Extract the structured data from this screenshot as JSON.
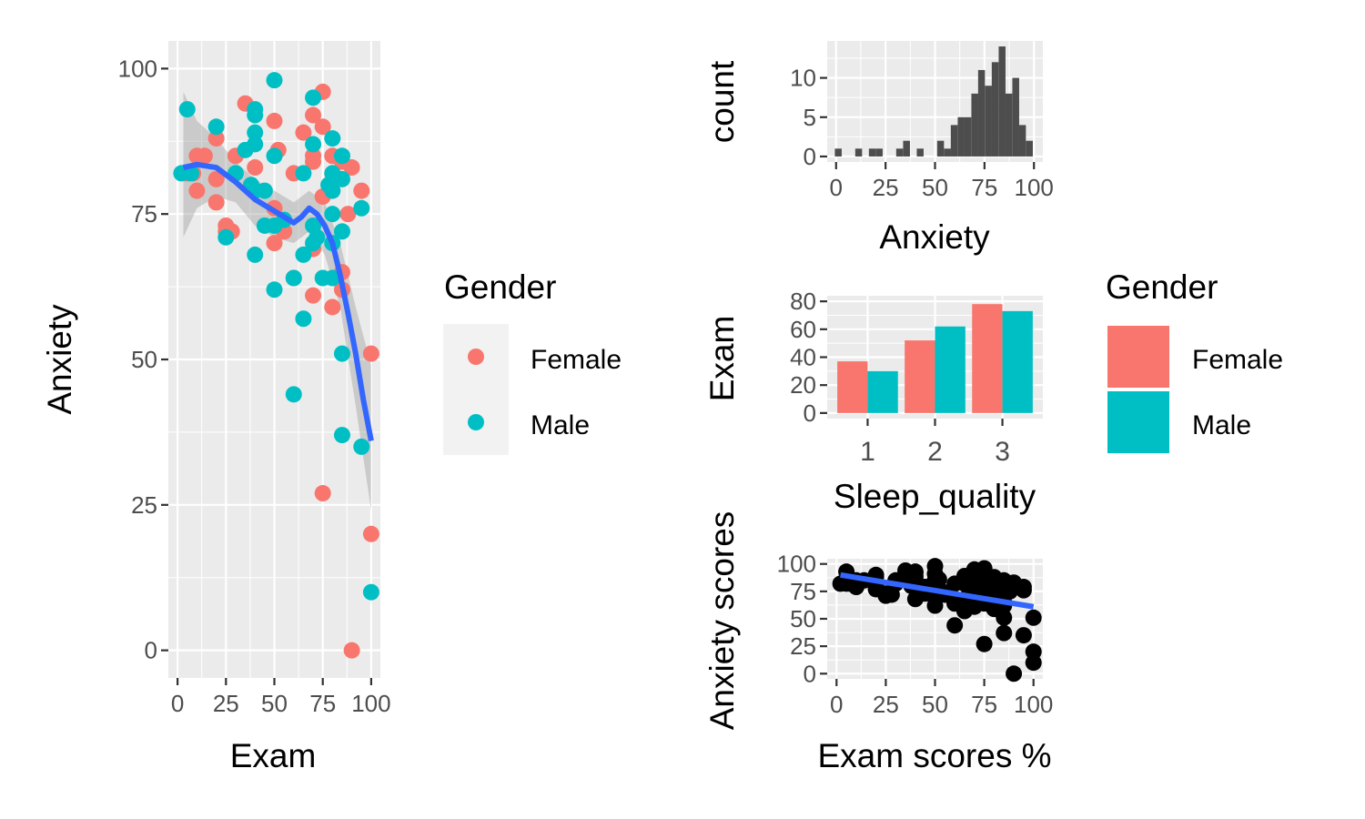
{
  "colors": {
    "female": "#F8766D",
    "male": "#00BFC4",
    "smooth": "#3366FF",
    "ribbon": "#999999",
    "hist": "#4d4d4d",
    "black": "#000000"
  },
  "legend_points": {
    "title": "Gender",
    "entries": [
      "Female",
      "Male"
    ]
  },
  "legend_bars": {
    "title": "Gender",
    "entries": [
      "Female",
      "Male"
    ]
  },
  "chart_data": [
    {
      "type": "scatter",
      "xlabel": "Exam",
      "ylabel": "Anxiety",
      "xlim": [
        0,
        100
      ],
      "ylim": [
        0,
        100
      ],
      "x_ticks": [
        "0",
        "25",
        "50",
        "75",
        "100"
      ],
      "y_ticks": [
        "0",
        "25",
        "50",
        "75",
        "100"
      ],
      "grid": true,
      "legend_position": "right",
      "series": [
        {
          "name": "Female",
          "points": [
            [
              5,
              82
            ],
            [
              8,
              82
            ],
            [
              10,
              85
            ],
            [
              10,
              79
            ],
            [
              14,
              85
            ],
            [
              20,
              88
            ],
            [
              20,
              81
            ],
            [
              20,
              77
            ],
            [
              25,
              73
            ],
            [
              25,
              72
            ],
            [
              28,
              72
            ],
            [
              30,
              85
            ],
            [
              35,
              94
            ],
            [
              40,
              83
            ],
            [
              50,
              91
            ],
            [
              50,
              76
            ],
            [
              50,
              70
            ],
            [
              52,
              86
            ],
            [
              55,
              72
            ],
            [
              60,
              64
            ],
            [
              60,
              82
            ],
            [
              65,
              89
            ],
            [
              70,
              92
            ],
            [
              70,
              85
            ],
            [
              70,
              84
            ],
            [
              70,
              69
            ],
            [
              70,
              61
            ],
            [
              75,
              96
            ],
            [
              75,
              90
            ],
            [
              75,
              78
            ],
            [
              75,
              27
            ],
            [
              80,
              85
            ],
            [
              80,
              82
            ],
            [
              80,
              59
            ],
            [
              85,
              84
            ],
            [
              85,
              65
            ],
            [
              85,
              62
            ],
            [
              88,
              75
            ],
            [
              90,
              83
            ],
            [
              90,
              0
            ],
            [
              95,
              79
            ],
            [
              100,
              51
            ],
            [
              100,
              20
            ]
          ]
        },
        {
          "name": "Male",
          "points": [
            [
              2,
              82
            ],
            [
              5,
              93
            ],
            [
              7,
              82
            ],
            [
              20,
              90
            ],
            [
              25,
              71
            ],
            [
              30,
              82
            ],
            [
              35,
              86
            ],
            [
              38,
              80
            ],
            [
              40,
              93
            ],
            [
              40,
              92
            ],
            [
              40,
              89
            ],
            [
              40,
              87
            ],
            [
              40,
              79
            ],
            [
              40,
              68
            ],
            [
              45,
              79
            ],
            [
              45,
              73
            ],
            [
              50,
              98
            ],
            [
              50,
              85
            ],
            [
              50,
              73
            ],
            [
              50,
              62
            ],
            [
              55,
              74
            ],
            [
              60,
              64
            ],
            [
              60,
              44
            ],
            [
              65,
              82
            ],
            [
              65,
              68
            ],
            [
              65,
              57
            ],
            [
              70,
              95
            ],
            [
              70,
              87
            ],
            [
              70,
              73
            ],
            [
              70,
              70
            ],
            [
              72,
              71
            ],
            [
              75,
              64
            ],
            [
              78,
              80
            ],
            [
              80,
              88
            ],
            [
              80,
              82
            ],
            [
              80,
              79
            ],
            [
              80,
              75
            ],
            [
              80,
              70
            ],
            [
              80,
              64
            ],
            [
              85,
              85
            ],
            [
              85,
              81
            ],
            [
              85,
              72
            ],
            [
              85,
              51
            ],
            [
              85,
              37
            ],
            [
              95,
              76
            ],
            [
              95,
              35
            ],
            [
              100,
              10
            ]
          ]
        }
      ],
      "smooth": [
        [
          3,
          83
        ],
        [
          10,
          83.5
        ],
        [
          20,
          83
        ],
        [
          30,
          80.5
        ],
        [
          40,
          77.5
        ],
        [
          50,
          75.5
        ],
        [
          55,
          74.5
        ],
        [
          60,
          73.5
        ],
        [
          64,
          74.5
        ],
        [
          68,
          76
        ],
        [
          72,
          75
        ],
        [
          76,
          73
        ],
        [
          80,
          70
        ],
        [
          84,
          64.5
        ],
        [
          88,
          58
        ],
        [
          92,
          51
        ],
        [
          96,
          43
        ],
        [
          100,
          36
        ]
      ],
      "ribbon": [
        [
          3,
          71,
          96
        ],
        [
          10,
          76,
          91
        ],
        [
          20,
          78,
          88
        ],
        [
          30,
          77,
          84
        ],
        [
          40,
          73,
          81
        ],
        [
          50,
          71,
          79
        ],
        [
          60,
          70,
          77
        ],
        [
          68,
          72,
          79
        ],
        [
          76,
          68,
          77
        ],
        [
          84,
          59,
          70
        ],
        [
          92,
          42,
          59
        ],
        [
          100,
          24,
          49
        ]
      ]
    },
    {
      "type": "bar",
      "subtype": "histogram",
      "xlabel": "Anxiety",
      "ylabel": "count",
      "xlim": [
        -4.5,
        104.5
      ],
      "ylim": [
        0,
        14
      ],
      "x_ticks": [
        "0",
        "25",
        "50",
        "75",
        "100"
      ],
      "y_ticks": [
        "0",
        "5",
        "10"
      ],
      "grid": true,
      "bin_width": 3.45,
      "bin_centers": [
        1.1,
        11.4,
        18.3,
        21.8,
        32.1,
        35.6,
        42.5,
        52.8,
        56.3,
        59.7,
        63.2,
        66.6,
        70.1,
        73.5,
        77,
        80.4,
        83.9,
        87.3,
        90.8,
        94.2,
        97.7
      ],
      "counts": [
        1,
        1,
        1,
        1,
        1,
        2,
        1,
        2,
        1,
        4,
        5,
        5,
        8,
        11,
        9,
        12,
        14,
        8,
        10,
        4,
        2
      ]
    },
    {
      "type": "bar",
      "xlabel": "Sleep_quality",
      "ylabel": "Exam",
      "categories": [
        "1",
        "2",
        "3"
      ],
      "ylim": [
        0,
        80
      ],
      "y_ticks": [
        "0",
        "20",
        "40",
        "60",
        "80"
      ],
      "grid": true,
      "legend_position": "right",
      "series": [
        {
          "name": "Female",
          "values": [
            37,
            52,
            78
          ]
        },
        {
          "name": "Male",
          "values": [
            30,
            62,
            73
          ]
        }
      ]
    },
    {
      "type": "scatter",
      "xlabel": "Exam scores %",
      "ylabel": "Anxiety scores",
      "xlim": [
        0,
        100
      ],
      "ylim": [
        0,
        100
      ],
      "x_ticks": [
        "0",
        "25",
        "50",
        "75",
        "100"
      ],
      "y_ticks": [
        "0",
        "25",
        "50",
        "75",
        "100"
      ],
      "grid": true,
      "trend_line": [
        [
          2,
          90
        ],
        [
          100,
          61
        ]
      ]
    }
  ]
}
